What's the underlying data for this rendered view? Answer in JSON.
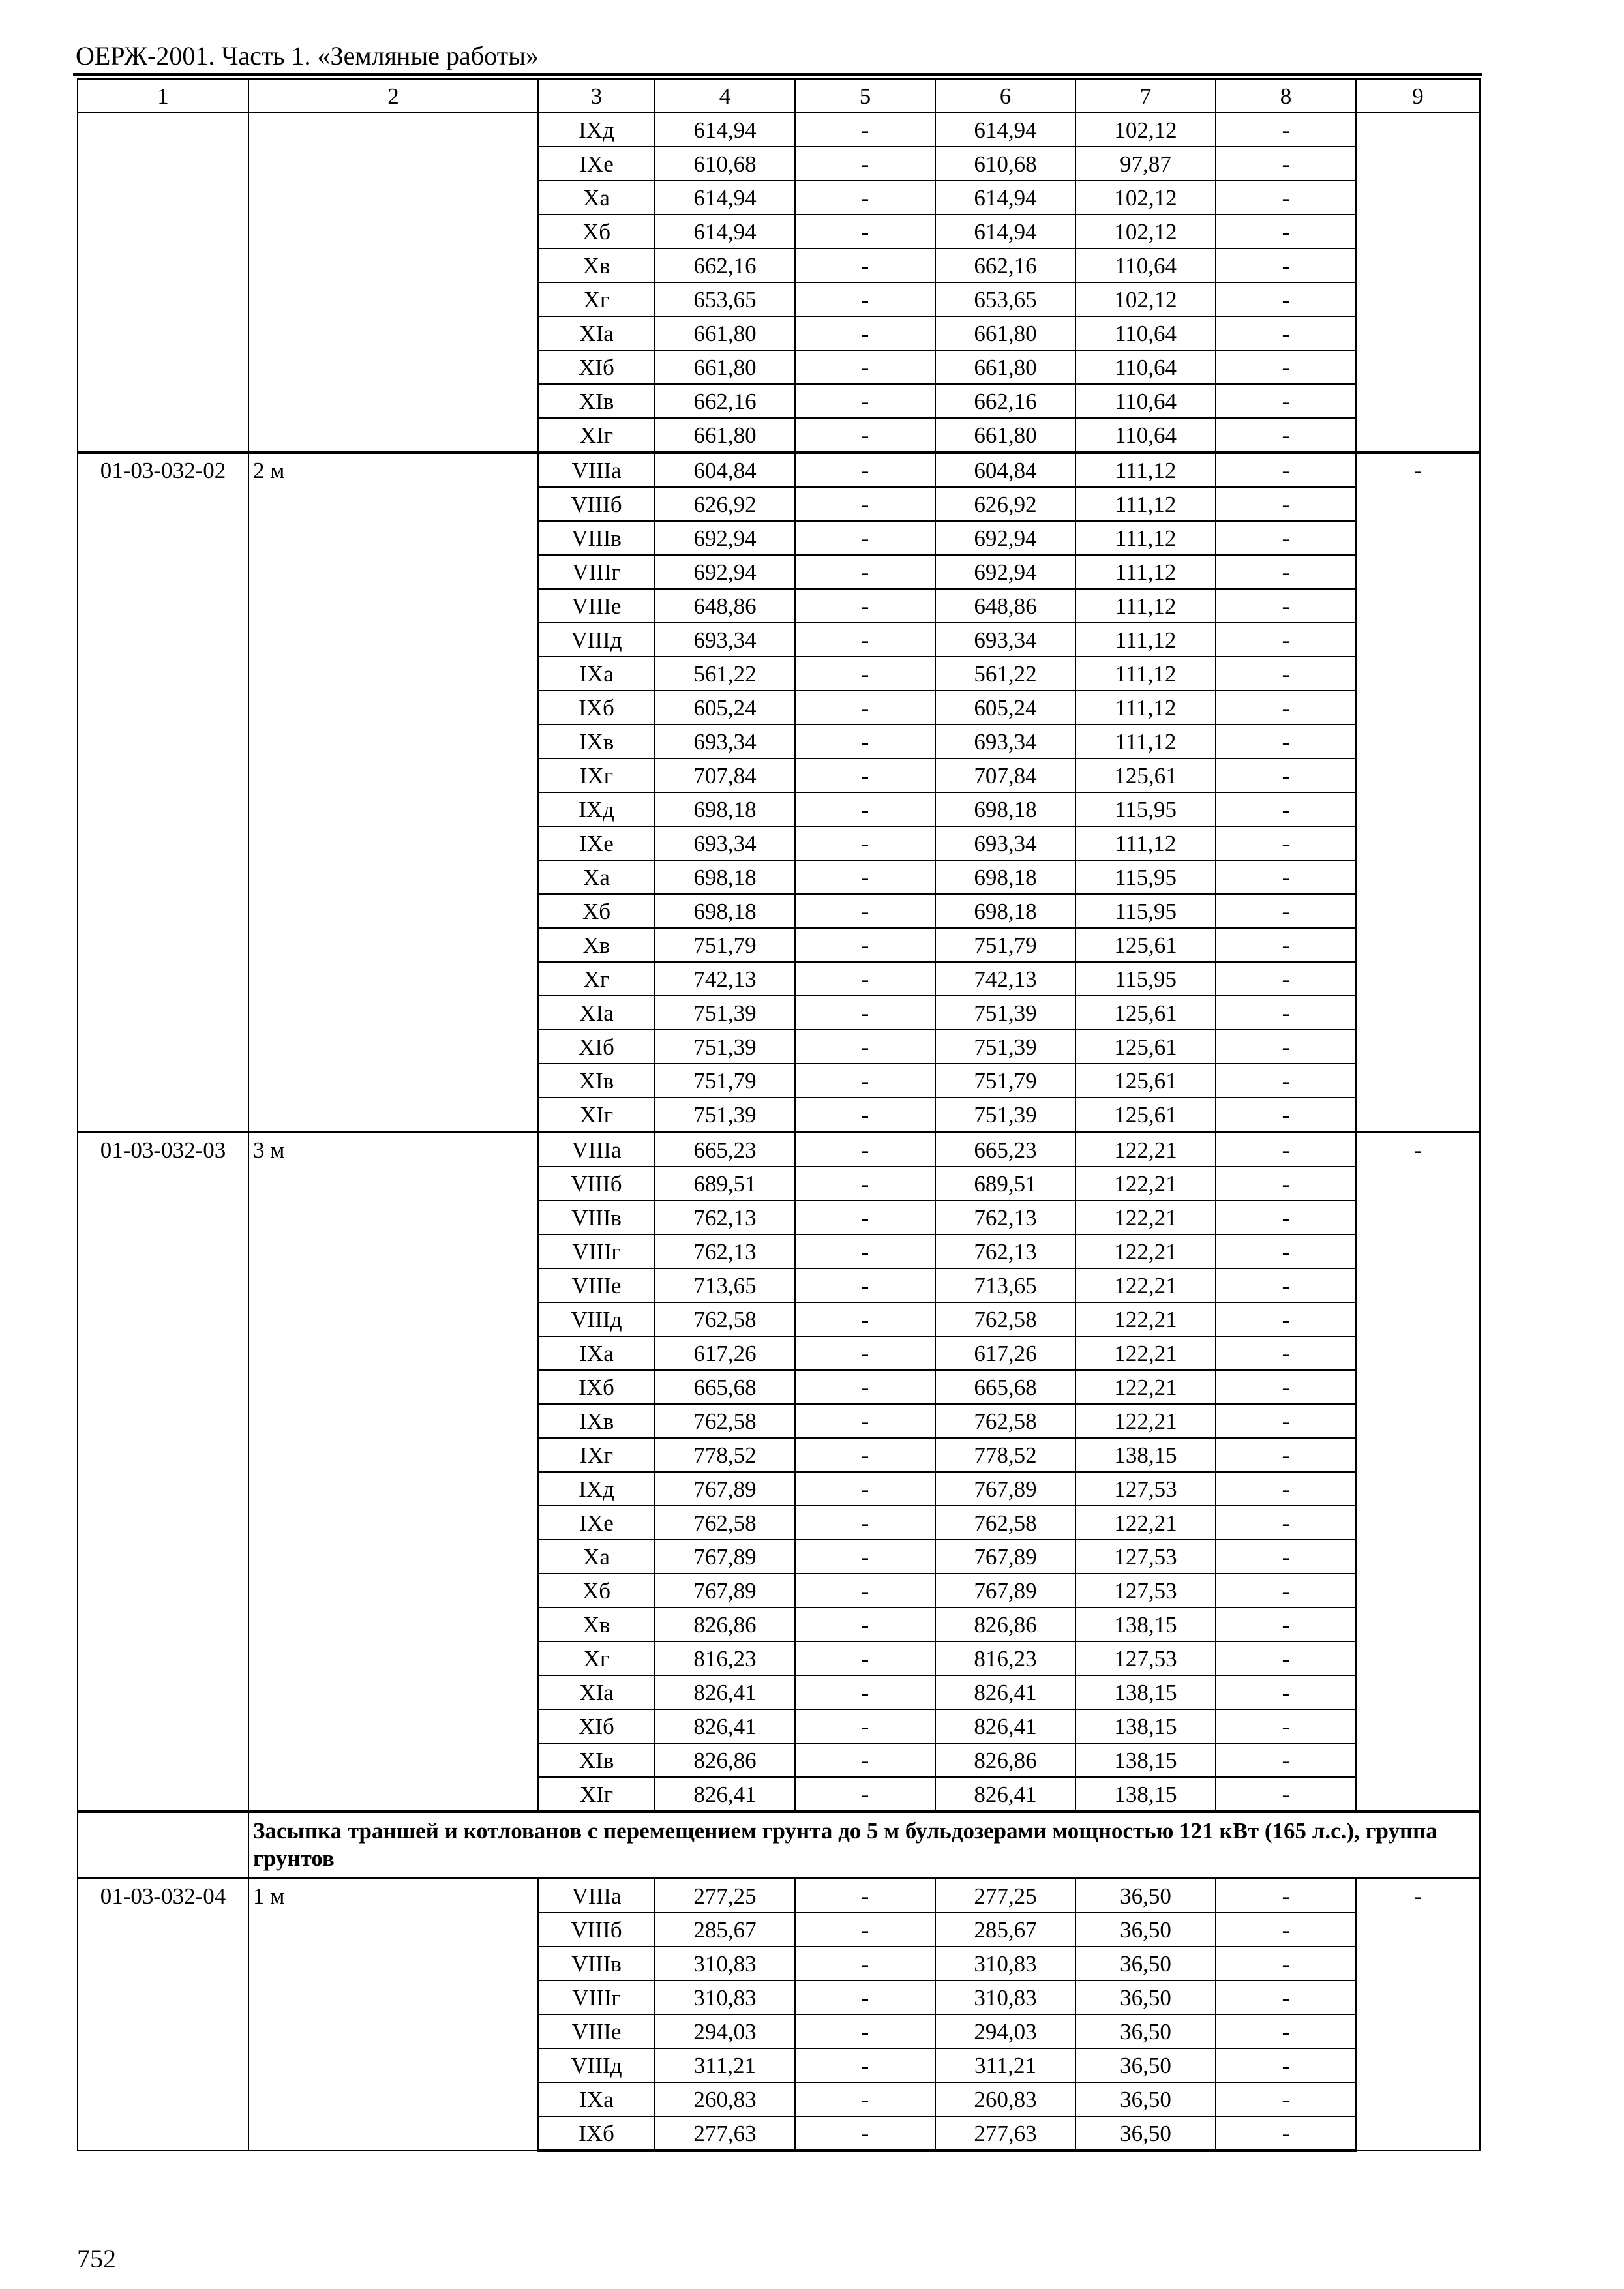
{
  "header": {
    "title": "ОЕРЖ-2001. Часть 1. «Земляные работы»"
  },
  "table": {
    "columns": [
      "1",
      "2",
      "3",
      "4",
      "5",
      "6",
      "7",
      "8",
      "9"
    ],
    "groups": [
      {
        "code": "",
        "label": "",
        "col9": "",
        "rows": [
          [
            "IXд",
            "614,94",
            "-",
            "614,94",
            "102,12",
            "-"
          ],
          [
            "IXе",
            "610,68",
            "-",
            "610,68",
            "97,87",
            "-"
          ],
          [
            "Xа",
            "614,94",
            "-",
            "614,94",
            "102,12",
            "-"
          ],
          [
            "Xб",
            "614,94",
            "-",
            "614,94",
            "102,12",
            "-"
          ],
          [
            "Xв",
            "662,16",
            "-",
            "662,16",
            "110,64",
            "-"
          ],
          [
            "Xг",
            "653,65",
            "-",
            "653,65",
            "102,12",
            "-"
          ],
          [
            "XIа",
            "661,80",
            "-",
            "661,80",
            "110,64",
            "-"
          ],
          [
            "XIб",
            "661,80",
            "-",
            "661,80",
            "110,64",
            "-"
          ],
          [
            "XIв",
            "662,16",
            "-",
            "662,16",
            "110,64",
            "-"
          ],
          [
            "XIг",
            "661,80",
            "-",
            "661,80",
            "110,64",
            "-"
          ]
        ]
      },
      {
        "code": "01-03-032-02",
        "label": "2 м",
        "col9": "-",
        "rows": [
          [
            "VIIIа",
            "604,84",
            "-",
            "604,84",
            "111,12",
            "-"
          ],
          [
            "VIIIб",
            "626,92",
            "-",
            "626,92",
            "111,12",
            "-"
          ],
          [
            "VIIIв",
            "692,94",
            "-",
            "692,94",
            "111,12",
            "-"
          ],
          [
            "VIIIг",
            "692,94",
            "-",
            "692,94",
            "111,12",
            "-"
          ],
          [
            "VIIIе",
            "648,86",
            "-",
            "648,86",
            "111,12",
            "-"
          ],
          [
            "VIIIд",
            "693,34",
            "-",
            "693,34",
            "111,12",
            "-"
          ],
          [
            "IXа",
            "561,22",
            "-",
            "561,22",
            "111,12",
            "-"
          ],
          [
            "IXб",
            "605,24",
            "-",
            "605,24",
            "111,12",
            "-"
          ],
          [
            "IXв",
            "693,34",
            "-",
            "693,34",
            "111,12",
            "-"
          ],
          [
            "IXг",
            "707,84",
            "-",
            "707,84",
            "125,61",
            "-"
          ],
          [
            "IXд",
            "698,18",
            "-",
            "698,18",
            "115,95",
            "-"
          ],
          [
            "IXе",
            "693,34",
            "-",
            "693,34",
            "111,12",
            "-"
          ],
          [
            "Xа",
            "698,18",
            "-",
            "698,18",
            "115,95",
            "-"
          ],
          [
            "Xб",
            "698,18",
            "-",
            "698,18",
            "115,95",
            "-"
          ],
          [
            "Xв",
            "751,79",
            "-",
            "751,79",
            "125,61",
            "-"
          ],
          [
            "Xг",
            "742,13",
            "-",
            "742,13",
            "115,95",
            "-"
          ],
          [
            "XIа",
            "751,39",
            "-",
            "751,39",
            "125,61",
            "-"
          ],
          [
            "XIб",
            "751,39",
            "-",
            "751,39",
            "125,61",
            "-"
          ],
          [
            "XIв",
            "751,79",
            "-",
            "751,79",
            "125,61",
            "-"
          ],
          [
            "XIг",
            "751,39",
            "-",
            "751,39",
            "125,61",
            "-"
          ]
        ]
      },
      {
        "code": "01-03-032-03",
        "label": "3 м",
        "col9": "-",
        "rows": [
          [
            "VIIIа",
            "665,23",
            "-",
            "665,23",
            "122,21",
            "-"
          ],
          [
            "VIIIб",
            "689,51",
            "-",
            "689,51",
            "122,21",
            "-"
          ],
          [
            "VIIIв",
            "762,13",
            "-",
            "762,13",
            "122,21",
            "-"
          ],
          [
            "VIIIг",
            "762,13",
            "-",
            "762,13",
            "122,21",
            "-"
          ],
          [
            "VIIIе",
            "713,65",
            "-",
            "713,65",
            "122,21",
            "-"
          ],
          [
            "VIIIд",
            "762,58",
            "-",
            "762,58",
            "122,21",
            "-"
          ],
          [
            "IXа",
            "617,26",
            "-",
            "617,26",
            "122,21",
            "-"
          ],
          [
            "IXб",
            "665,68",
            "-",
            "665,68",
            "122,21",
            "-"
          ],
          [
            "IXв",
            "762,58",
            "-",
            "762,58",
            "122,21",
            "-"
          ],
          [
            "IXг",
            "778,52",
            "-",
            "778,52",
            "138,15",
            "-"
          ],
          [
            "IXд",
            "767,89",
            "-",
            "767,89",
            "127,53",
            "-"
          ],
          [
            "IXе",
            "762,58",
            "-",
            "762,58",
            "122,21",
            "-"
          ],
          [
            "Xа",
            "767,89",
            "-",
            "767,89",
            "127,53",
            "-"
          ],
          [
            "Xб",
            "767,89",
            "-",
            "767,89",
            "127,53",
            "-"
          ],
          [
            "Xв",
            "826,86",
            "-",
            "826,86",
            "138,15",
            "-"
          ],
          [
            "Xг",
            "816,23",
            "-",
            "816,23",
            "127,53",
            "-"
          ],
          [
            "XIа",
            "826,41",
            "-",
            "826,41",
            "138,15",
            "-"
          ],
          [
            "XIб",
            "826,41",
            "-",
            "826,41",
            "138,15",
            "-"
          ],
          [
            "XIв",
            "826,86",
            "-",
            "826,86",
            "138,15",
            "-"
          ],
          [
            "XIг",
            "826,41",
            "-",
            "826,41",
            "138,15",
            "-"
          ]
        ]
      },
      {
        "section": "Засыпка траншей и котлованов с перемещением грунта до 5 м бульдозерами мощностью 121 кВт (165 л.с.), группа грунтов"
      },
      {
        "code": "01-03-032-04",
        "label": "1 м",
        "col9": "-",
        "rows": [
          [
            "VIIIа",
            "277,25",
            "-",
            "277,25",
            "36,50",
            "-"
          ],
          [
            "VIIIб",
            "285,67",
            "-",
            "285,67",
            "36,50",
            "-"
          ],
          [
            "VIIIв",
            "310,83",
            "-",
            "310,83",
            "36,50",
            "-"
          ],
          [
            "VIIIг",
            "310,83",
            "-",
            "310,83",
            "36,50",
            "-"
          ],
          [
            "VIIIе",
            "294,03",
            "-",
            "294,03",
            "36,50",
            "-"
          ],
          [
            "VIIIд",
            "311,21",
            "-",
            "311,21",
            "36,50",
            "-"
          ],
          [
            "IXа",
            "260,83",
            "-",
            "260,83",
            "36,50",
            "-"
          ],
          [
            "IXб",
            "277,63",
            "-",
            "277,63",
            "36,50",
            "-"
          ]
        ]
      }
    ]
  },
  "footer": {
    "page_number": "752"
  }
}
